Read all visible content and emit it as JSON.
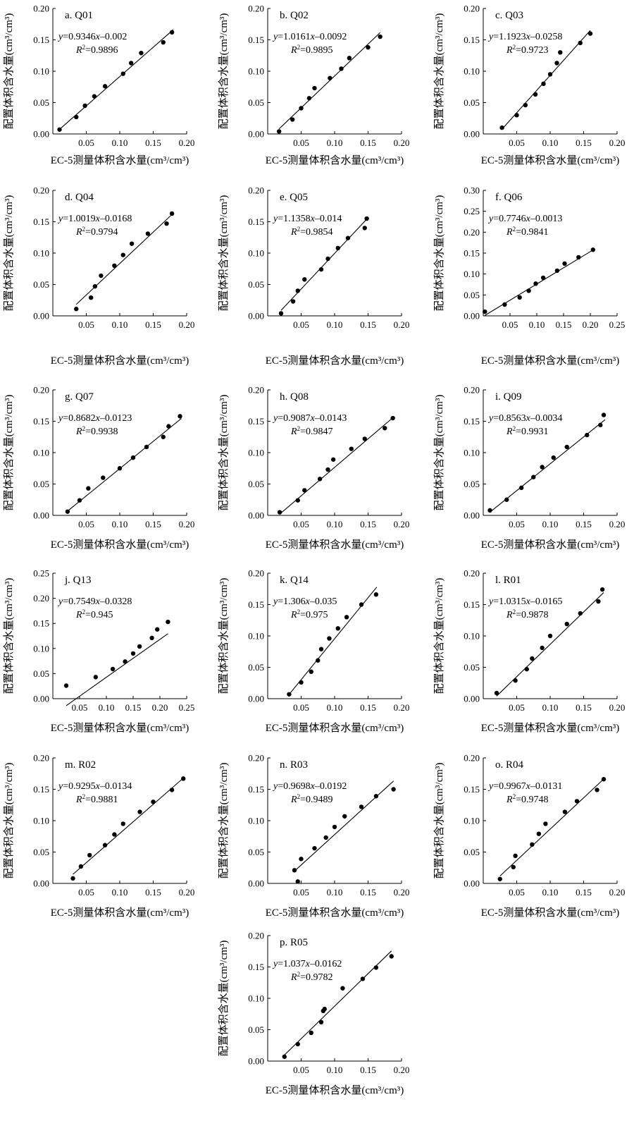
{
  "chart_data": [
    {
      "type": "scatter",
      "title": "a. Q01",
      "xlabel": "EC-5测量体积含水量(cm³/cm³)",
      "ylabel": "配置体积含水量(cm³/cm³)",
      "xlim": [
        0,
        0.2
      ],
      "ylim": [
        0,
        0.2
      ],
      "xticks": [
        0.05,
        0.1,
        0.15,
        0.2
      ],
      "xtick_labels": [
        "0.05",
        "0.10",
        "0.15",
        "0.20"
      ],
      "yticks": [
        0,
        0.05,
        0.1,
        0.15,
        0.2
      ],
      "ytick_labels": [
        "0.00",
        "0.05",
        "0.10",
        "0.15",
        "0.20"
      ],
      "equation": "y=0.9346x–0.002",
      "r2_label": "R²=0.9896",
      "fit": {
        "slope": 0.9346,
        "intercept": -0.002,
        "x_range": [
          0.01,
          0.18
        ]
      },
      "x": [
        0.01,
        0.035,
        0.048,
        0.062,
        0.078,
        0.105,
        0.117,
        0.132,
        0.165,
        0.178
      ],
      "y": [
        0.007,
        0.027,
        0.045,
        0.06,
        0.076,
        0.096,
        0.113,
        0.129,
        0.146,
        0.162
      ]
    },
    {
      "type": "scatter",
      "title": "b. Q02",
      "xlabel": "EC-5测量体积含水量(cm³/cm³)",
      "ylabel": "配置体积含水量(cm³/cm³)",
      "xlim": [
        0,
        0.2
      ],
      "ylim": [
        0,
        0.2
      ],
      "xticks": [
        0.05,
        0.1,
        0.15,
        0.2
      ],
      "xtick_labels": [
        "0.05",
        "0.10",
        "0.15",
        "0.20"
      ],
      "yticks": [
        0,
        0.05,
        0.1,
        0.15,
        0.2
      ],
      "ytick_labels": [
        "0.00",
        "0.05",
        "0.10",
        "0.15",
        "0.20"
      ],
      "equation": "y=1.0161x–0.0092",
      "r2_label": "R²=0.9895",
      "fit": {
        "slope": 1.0161,
        "intercept": -0.0092,
        "x_range": [
          0.017,
          0.168
        ]
      },
      "x": [
        0.017,
        0.037,
        0.05,
        0.062,
        0.07,
        0.093,
        0.11,
        0.122,
        0.15,
        0.168
      ],
      "y": [
        0.004,
        0.023,
        0.041,
        0.057,
        0.073,
        0.089,
        0.104,
        0.121,
        0.138,
        0.155
      ]
    },
    {
      "type": "scatter",
      "title": "c. Q03",
      "xlabel": "EC-5测量体积含水量(cm³/cm³)",
      "ylabel": "配置体积含水量(cm³/cm³)",
      "xlim": [
        0,
        0.2
      ],
      "ylim": [
        0,
        0.2
      ],
      "xticks": [
        0.05,
        0.1,
        0.15,
        0.2
      ],
      "xtick_labels": [
        "0.05",
        "0.10",
        "0.15",
        "0.20"
      ],
      "yticks": [
        0,
        0.05,
        0.1,
        0.15,
        0.2
      ],
      "ytick_labels": [
        "0.00",
        "0.05",
        "0.10",
        "0.15",
        "0.20"
      ],
      "equation": "y=1.1923x–0.0258",
      "r2_label": "R²=0.9723",
      "fit": {
        "slope": 1.1923,
        "intercept": -0.0258,
        "x_range": [
          0.03,
          0.16
        ]
      },
      "x": [
        0.028,
        0.05,
        0.063,
        0.078,
        0.09,
        0.1,
        0.11,
        0.115,
        0.145,
        0.16
      ],
      "y": [
        0.01,
        0.03,
        0.046,
        0.063,
        0.08,
        0.095,
        0.113,
        0.13,
        0.145,
        0.16
      ]
    },
    {
      "type": "scatter",
      "title": "d. Q04",
      "xlabel": "EC-5测量体积含水量(cm³/cm³)",
      "ylabel": "配置体积含水量(cm³/cm³)",
      "xlim": [
        0,
        0.2
      ],
      "ylim": [
        0,
        0.2
      ],
      "xticks": [
        0.05,
        0.1,
        0.15,
        0.2
      ],
      "xtick_labels": [
        "0.05",
        "0.10",
        "0.15",
        "0.20"
      ],
      "yticks": [
        0,
        0.05,
        0.1,
        0.15,
        0.2
      ],
      "ytick_labels": [
        "0.00",
        "0.05",
        "0.10",
        "0.15",
        "0.20"
      ],
      "equation": "y=1.0019x–0.0168",
      "r2_label": "R²=0.9794",
      "fit": {
        "slope": 1.0019,
        "intercept": -0.0168,
        "x_range": [
          0.035,
          0.178
        ]
      },
      "x": [
        0.035,
        0.057,
        0.063,
        0.072,
        0.092,
        0.105,
        0.118,
        0.142,
        0.17,
        0.178
      ],
      "y": [
        0.011,
        0.029,
        0.047,
        0.064,
        0.08,
        0.097,
        0.115,
        0.131,
        0.147,
        0.163
      ]
    },
    {
      "type": "scatter",
      "title": "e. Q05",
      "xlabel": "EC-5测量体积含水量(cm³/cm³)",
      "ylabel": "配置体积含水量(cm³/cm³)",
      "xlim": [
        0,
        0.2
      ],
      "ylim": [
        0,
        0.2
      ],
      "xticks": [
        0.05,
        0.1,
        0.15,
        0.2
      ],
      "xtick_labels": [
        "0.05",
        "0.10",
        "0.15",
        "0.20"
      ],
      "yticks": [
        0,
        0.05,
        0.1,
        0.15,
        0.2
      ],
      "ytick_labels": [
        "0.00",
        "0.05",
        "0.10",
        "0.15",
        "0.20"
      ],
      "equation": "y=1.1358x–0.014",
      "r2_label": "R²=0.9854",
      "fit": {
        "slope": 1.1358,
        "intercept": -0.014,
        "x_range": [
          0.02,
          0.148
        ]
      },
      "x": [
        0.02,
        0.038,
        0.045,
        0.055,
        0.08,
        0.09,
        0.105,
        0.12,
        0.145,
        0.148
      ],
      "y": [
        0.004,
        0.023,
        0.04,
        0.058,
        0.074,
        0.091,
        0.108,
        0.124,
        0.14,
        0.155
      ]
    },
    {
      "type": "scatter",
      "title": "f. Q06",
      "xlabel": "EC-5测量体积含水量(cm³/cm³)",
      "ylabel": "配置体积含水量(cm³/cm³)",
      "xlim": [
        0,
        0.25
      ],
      "ylim": [
        0,
        0.3
      ],
      "xticks": [
        0.05,
        0.1,
        0.15,
        0.2,
        0.25
      ],
      "xtick_labels": [
        "0.05",
        "0.10",
        "0.15",
        "0.20",
        "0.25"
      ],
      "yticks": [
        0,
        0.05,
        0.1,
        0.15,
        0.2,
        0.25,
        0.3
      ],
      "ytick_labels": [
        "0.00",
        "0.05",
        "0.10",
        "0.15",
        "0.20",
        "0.25",
        "0.30"
      ],
      "equation": "y=0.7746x–0.0013",
      "r2_label": "R²=0.9841",
      "fit": {
        "slope": 0.7746,
        "intercept": -0.0013,
        "x_range": [
          0.003,
          0.205
        ]
      },
      "x": [
        0.003,
        0.04,
        0.068,
        0.085,
        0.098,
        0.112,
        0.138,
        0.152,
        0.178,
        0.205
      ],
      "y": [
        0.01,
        0.027,
        0.044,
        0.06,
        0.077,
        0.091,
        0.108,
        0.125,
        0.14,
        0.158
      ]
    },
    {
      "type": "scatter",
      "title": "g. Q07",
      "xlabel": "EC-5测量体积含水量(cm³/cm³)",
      "ylabel": "配置体积含水量(cm³/cm³)",
      "xlim": [
        0,
        0.2
      ],
      "ylim": [
        0,
        0.2
      ],
      "xticks": [
        0.05,
        0.1,
        0.15,
        0.2
      ],
      "xtick_labels": [
        "0.05",
        "0.10",
        "0.15",
        "0.20"
      ],
      "yticks": [
        0,
        0.05,
        0.1,
        0.15,
        0.2
      ],
      "ytick_labels": [
        "0.00",
        "0.05",
        "0.10",
        "0.15",
        "0.20"
      ],
      "equation": "y=0.8682x–0.0123",
      "r2_label": "R²=0.9938",
      "fit": {
        "slope": 0.8682,
        "intercept": -0.0123,
        "x_range": [
          0.022,
          0.192
        ]
      },
      "x": [
        0.022,
        0.04,
        0.053,
        0.075,
        0.1,
        0.12,
        0.14,
        0.165,
        0.173,
        0.19
      ],
      "y": [
        0.006,
        0.024,
        0.043,
        0.06,
        0.075,
        0.092,
        0.109,
        0.125,
        0.142,
        0.158
      ]
    },
    {
      "type": "scatter",
      "title": "h. Q08",
      "xlabel": "EC-5测量体积含水量(cm³/cm³)",
      "ylabel": "配置体积含水量(cm³/cm³)",
      "xlim": [
        0,
        0.2
      ],
      "ylim": [
        0,
        0.2
      ],
      "xticks": [
        0.05,
        0.1,
        0.15,
        0.2
      ],
      "xtick_labels": [
        "0.05",
        "0.10",
        "0.15",
        "0.20"
      ],
      "yticks": [
        0,
        0.05,
        0.1,
        0.15,
        0.2
      ],
      "ytick_labels": [
        "0.00",
        "0.05",
        "0.10",
        "0.15",
        "0.20"
      ],
      "equation": "y=0.9087x–0.0143",
      "r2_label": "R²=0.9847",
      "fit": {
        "slope": 0.9087,
        "intercept": -0.0143,
        "x_range": [
          0.02,
          0.185
        ]
      },
      "x": [
        0.018,
        0.045,
        0.055,
        0.078,
        0.09,
        0.098,
        0.125,
        0.145,
        0.175,
        0.187
      ],
      "y": [
        0.005,
        0.024,
        0.04,
        0.058,
        0.073,
        0.089,
        0.106,
        0.122,
        0.139,
        0.155
      ]
    },
    {
      "type": "scatter",
      "title": "i. Q09",
      "xlabel": "EC-5测量体积含水量(cm³/cm³)",
      "ylabel": "配置体积含水量(cm³/cm³)",
      "xlim": [
        0,
        0.2
      ],
      "ylim": [
        0,
        0.2
      ],
      "xticks": [
        0.05,
        0.1,
        0.15,
        0.2
      ],
      "xtick_labels": [
        "0.05",
        "0.10",
        "0.15",
        "0.20"
      ],
      "yticks": [
        0,
        0.05,
        0.1,
        0.15,
        0.2
      ],
      "ytick_labels": [
        "0.00",
        "0.05",
        "0.10",
        "0.15",
        "0.20"
      ],
      "equation": "y=0.8563x–0.0034",
      "r2_label": "R²=0.9931",
      "fit": {
        "slope": 0.8563,
        "intercept": -0.0034,
        "x_range": [
          0.01,
          0.182
        ]
      },
      "x": [
        0.01,
        0.035,
        0.057,
        0.075,
        0.088,
        0.105,
        0.125,
        0.155,
        0.175,
        0.18
      ],
      "y": [
        0.008,
        0.025,
        0.044,
        0.061,
        0.077,
        0.092,
        0.109,
        0.128,
        0.144,
        0.16
      ]
    },
    {
      "type": "scatter",
      "title": "j. Q13",
      "xlabel": "EC-5测量体积含水量(cm³/cm³)",
      "ylabel": "配置体积含水量(cm³/cm³)",
      "xlim": [
        0,
        0.25
      ],
      "ylim": [
        0,
        0.25
      ],
      "xticks": [
        0.05,
        0.1,
        0.15,
        0.2,
        0.25
      ],
      "xtick_labels": [
        "0.05",
        "0.10",
        "0.15",
        "0.20",
        "0.25"
      ],
      "yticks": [
        0,
        0.05,
        0.1,
        0.15,
        0.2,
        0.25
      ],
      "ytick_labels": [
        "0.00",
        "0.05",
        "0.10",
        "0.15",
        "0.20",
        "0.25"
      ],
      "equation": "y=0.7549x–0.0328",
      "r2_label": "R²=0.945",
      "fit": {
        "slope": 0.7549,
        "intercept": -0.0328,
        "x_range": [
          0.025,
          0.215
        ]
      },
      "x": [
        0.025,
        0.08,
        0.112,
        0.135,
        0.15,
        0.162,
        0.185,
        0.195,
        0.215
      ],
      "y": [
        0.026,
        0.043,
        0.059,
        0.074,
        0.09,
        0.104,
        0.121,
        0.138,
        0.153
      ]
    },
    {
      "type": "scatter",
      "title": "k. Q14",
      "xlabel": "EC-5测量体积含水量(cm³/cm³)",
      "ylabel": "配置体积含水量(cm³/cm³)",
      "xlim": [
        0,
        0.2
      ],
      "ylim": [
        0,
        0.2
      ],
      "xticks": [
        0.05,
        0.1,
        0.15,
        0.2
      ],
      "xtick_labels": [
        "0.05",
        "0.10",
        "0.15",
        "0.20"
      ],
      "yticks": [
        0,
        0.05,
        0.1,
        0.15,
        0.2
      ],
      "ytick_labels": [
        "0.00",
        "0.05",
        "0.10",
        "0.15",
        "0.20"
      ],
      "equation": "y=1.306x–0.035",
      "r2_label": "R²=0.975",
      "fit": {
        "slope": 1.306,
        "intercept": -0.035,
        "x_range": [
          0.032,
          0.163
        ]
      },
      "x": [
        0.032,
        0.05,
        0.065,
        0.075,
        0.08,
        0.092,
        0.105,
        0.118,
        0.14,
        0.162
      ],
      "y": [
        0.007,
        0.026,
        0.043,
        0.061,
        0.079,
        0.096,
        0.112,
        0.13,
        0.15,
        0.166
      ]
    },
    {
      "type": "scatter",
      "title": "l. R01",
      "xlabel": "EC-5测量体积含水量(cm³/cm³)",
      "ylabel": "配置体积含水量(cm³/cm³)",
      "xlim": [
        0,
        0.2
      ],
      "ylim": [
        0,
        0.2
      ],
      "xticks": [
        0.05,
        0.1,
        0.15,
        0.2
      ],
      "xtick_labels": [
        "0.05",
        "0.10",
        "0.15",
        "0.20"
      ],
      "yticks": [
        0,
        0.05,
        0.1,
        0.15,
        0.2
      ],
      "ytick_labels": [
        "0.00",
        "0.05",
        "0.10",
        "0.15",
        "0.20"
      ],
      "equation": "y=1.0315x–0.0165",
      "r2_label": "R²=0.9878",
      "fit": {
        "slope": 1.0315,
        "intercept": -0.0165,
        "x_range": [
          0.02,
          0.18
        ]
      },
      "x": [
        0.02,
        0.048,
        0.065,
        0.073,
        0.088,
        0.1,
        0.125,
        0.145,
        0.172,
        0.178
      ],
      "y": [
        0.009,
        0.029,
        0.047,
        0.064,
        0.081,
        0.1,
        0.119,
        0.136,
        0.155,
        0.174
      ]
    },
    {
      "type": "scatter",
      "title": "m. R02",
      "xlabel": "EC-5测量体积含水量(cm³/cm³)",
      "ylabel": "配置体积含水量(cm³/cm³)",
      "xlim": [
        0,
        0.2
      ],
      "ylim": [
        0,
        0.2
      ],
      "xticks": [
        0.05,
        0.1,
        0.15,
        0.2
      ],
      "xtick_labels": [
        "0.05",
        "0.10",
        "0.15",
        "0.20"
      ],
      "yticks": [
        0,
        0.05,
        0.1,
        0.15,
        0.2
      ],
      "ytick_labels": [
        "0.00",
        "0.05",
        "0.10",
        "0.15",
        "0.20"
      ],
      "equation": "y=0.9295x–0.0134",
      "r2_label": "R²=0.9881",
      "fit": {
        "slope": 0.9295,
        "intercept": -0.0134,
        "x_range": [
          0.03,
          0.195
        ]
      },
      "x": [
        0.03,
        0.042,
        0.055,
        0.078,
        0.092,
        0.105,
        0.13,
        0.15,
        0.178,
        0.195
      ],
      "y": [
        0.008,
        0.027,
        0.045,
        0.061,
        0.078,
        0.095,
        0.114,
        0.13,
        0.149,
        0.167
      ]
    },
    {
      "type": "scatter",
      "title": "n. R03",
      "xlabel": "EC-5测量体积含水量(cm³/cm³)",
      "ylabel": "配置体积含水量(cm³/cm³)",
      "xlim": [
        0,
        0.2
      ],
      "ylim": [
        0,
        0.2
      ],
      "xticks": [
        0.05,
        0.1,
        0.15,
        0.2
      ],
      "xtick_labels": [
        "0.05",
        "0.10",
        "0.15",
        "0.20"
      ],
      "yticks": [
        0,
        0.05,
        0.1,
        0.15,
        0.2
      ],
      "ytick_labels": [
        "0.00",
        "0.05",
        "0.10",
        "0.15",
        "0.20"
      ],
      "equation": "y=0.9698x–0.0192",
      "r2_label": "R²=0.9489",
      "fit": {
        "slope": 0.9698,
        "intercept": -0.0192,
        "x_range": [
          0.04,
          0.188
        ]
      },
      "x": [
        0.04,
        0.045,
        0.05,
        0.07,
        0.087,
        0.1,
        0.115,
        0.14,
        0.162,
        0.188
      ],
      "y": [
        0.021,
        0.003,
        0.039,
        0.056,
        0.073,
        0.09,
        0.107,
        0.122,
        0.139,
        0.15
      ]
    },
    {
      "type": "scatter",
      "title": "o. R04",
      "xlabel": "EC-5测量体积含水量(cm³/cm³)",
      "ylabel": "配置体积含水量(cm³/cm³)",
      "xlim": [
        0,
        0.2
      ],
      "ylim": [
        0,
        0.2
      ],
      "xticks": [
        0.05,
        0.1,
        0.15,
        0.2
      ],
      "xtick_labels": [
        "0.05",
        "0.10",
        "0.15",
        "0.20"
      ],
      "yticks": [
        0,
        0.05,
        0.1,
        0.15,
        0.2
      ],
      "ytick_labels": [
        "0.00",
        "0.05",
        "0.10",
        "0.15",
        "0.20"
      ],
      "equation": "y=0.9967x–0.0131",
      "r2_label": "R²=0.9748",
      "fit": {
        "slope": 0.9967,
        "intercept": -0.0131,
        "x_range": [
          0.025,
          0.18
        ]
      },
      "x": [
        0.025,
        0.045,
        0.048,
        0.073,
        0.083,
        0.093,
        0.122,
        0.14,
        0.17,
        0.18
      ],
      "y": [
        0.007,
        0.026,
        0.044,
        0.062,
        0.079,
        0.095,
        0.114,
        0.131,
        0.149,
        0.166
      ]
    },
    {
      "type": "scatter",
      "title": "p. R05",
      "xlabel": "EC-5测量体积含水量(cm³/cm³)",
      "ylabel": "配置体积含水量(cm³/cm³)",
      "xlim": [
        0,
        0.2
      ],
      "ylim": [
        0,
        0.2
      ],
      "xticks": [
        0.05,
        0.1,
        0.15,
        0.2
      ],
      "xtick_labels": [
        "0.05",
        "0.10",
        "0.15",
        "0.20"
      ],
      "yticks": [
        0,
        0.05,
        0.1,
        0.15,
        0.2
      ],
      "ytick_labels": [
        "0.00",
        "0.05",
        "0.10",
        "0.15",
        "0.20"
      ],
      "equation": "y=1.037x–0.0162",
      "r2_label": "R²=0.9782",
      "fit": {
        "slope": 1.037,
        "intercept": -0.0162,
        "x_range": [
          0.025,
          0.185
        ]
      },
      "x": [
        0.025,
        0.045,
        0.065,
        0.08,
        0.083,
        0.085,
        0.112,
        0.142,
        0.162,
        0.185
      ],
      "y": [
        0.007,
        0.027,
        0.045,
        0.062,
        0.08,
        0.083,
        0.116,
        0.131,
        0.149,
        0.167
      ]
    }
  ]
}
